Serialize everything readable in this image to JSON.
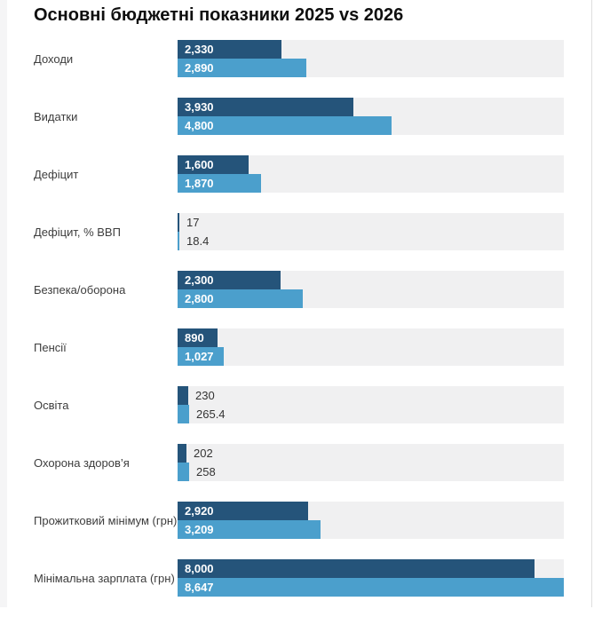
{
  "page": {
    "background": "#ffffff",
    "left_strip_color": "#f5f5f6",
    "right_border_color": "#dedede"
  },
  "chart_data": {
    "type": "bar",
    "orientation": "horizontal",
    "title": "Основні бюджетні показники 2025 vs 2026",
    "categories": [
      "Доходи",
      "Видатки",
      "Дефіцит",
      "Дефіцит, % ВВП",
      "Безпека/оборона",
      "Пенсії",
      "Освіта",
      "Охорона здоров’я",
      "Прожитковий мінімум (грн)",
      "Мінімальна зарплата (грн)"
    ],
    "series": [
      {
        "name": "2025",
        "color": "#25547a",
        "values": [
          2330,
          3930,
          1600,
          17,
          2300,
          890,
          230,
          202,
          2920,
          8000
        ],
        "labels": [
          "2,330",
          "3,930",
          "1,600",
          "17",
          "2,300",
          "890",
          "230",
          "202",
          "2,920",
          "8,000"
        ]
      },
      {
        "name": "2026",
        "color": "#4b9fcc",
        "values": [
          2890,
          4800,
          1870,
          18.4,
          2800,
          1027,
          265.4,
          258,
          3209,
          8647
        ],
        "labels": [
          "2,890",
          "4,800",
          "1,870",
          "18.4",
          "2,800",
          "1,027",
          "265.4",
          "258",
          "3,209",
          "8,647"
        ]
      }
    ],
    "xlim": [
      0,
      8647
    ],
    "track_color": "#f0f0f1",
    "grid": false,
    "legend": "none"
  }
}
